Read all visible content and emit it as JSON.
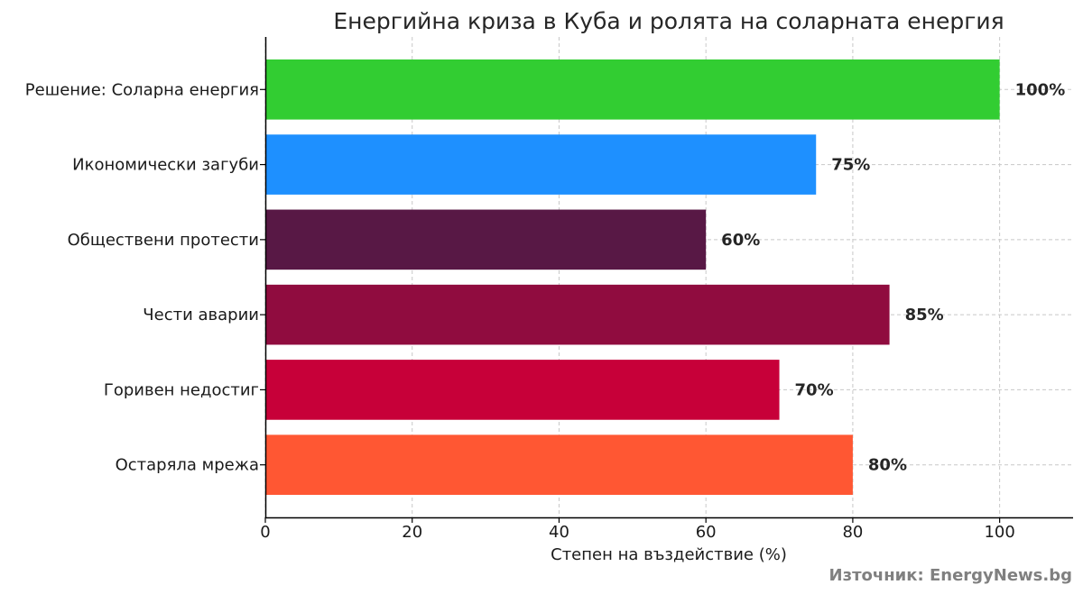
{
  "chart_data": {
    "type": "bar",
    "orientation": "horizontal",
    "title": "Енергийна криза в Куба и ролята на соларната енергия",
    "xlabel": "Степен на въздействие (%)",
    "ylabel": "",
    "categories": [
      "Остаряла мрежа",
      "Горивен недостиг",
      "Чести аварии",
      "Обществени протести",
      "Икономически загуби",
      "Решение: Соларна енергия"
    ],
    "values": [
      80,
      70,
      85,
      60,
      75,
      100
    ],
    "value_labels": [
      "80%",
      "70%",
      "85%",
      "60%",
      "75%",
      "100%"
    ],
    "colors": [
      "#ff5733",
      "#c70039",
      "#900c3f",
      "#581845",
      "#1e90ff",
      "#32cd32"
    ],
    "xlim": [
      0,
      110
    ],
    "xticks": [
      0,
      20,
      40,
      60,
      80,
      100
    ],
    "xtick_labels": [
      "0",
      "20",
      "40",
      "60",
      "80",
      "100"
    ],
    "grid": true,
    "source": "Източник: EnergyNews.bg"
  }
}
